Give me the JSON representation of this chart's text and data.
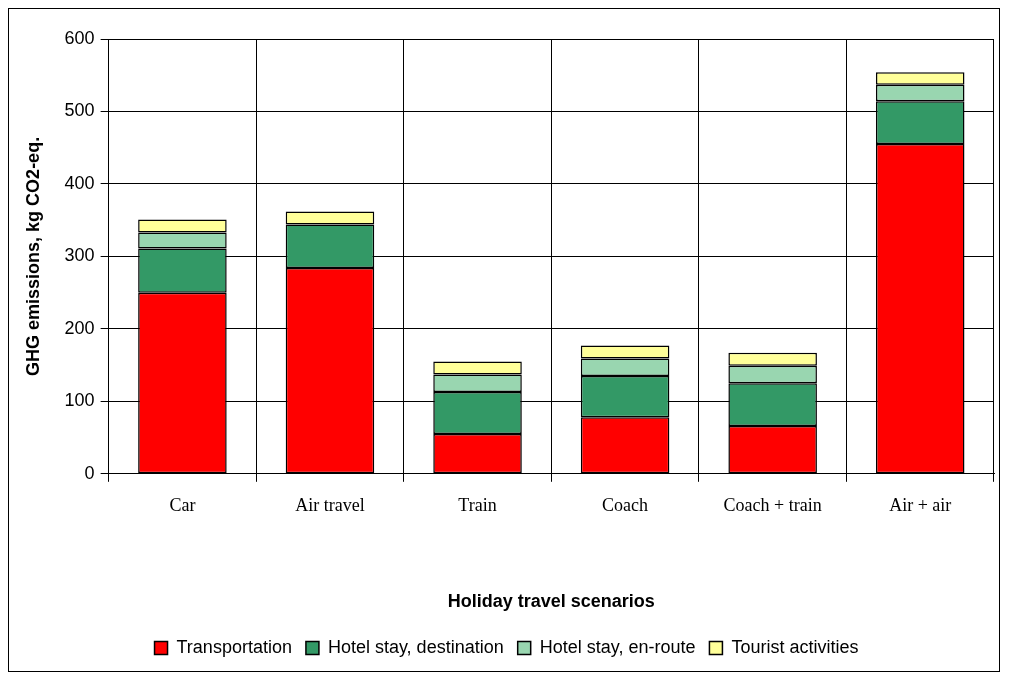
{
  "chart_data": {
    "type": "bar",
    "stacked": true,
    "xlabel": "Holiday travel scenarios",
    "ylabel": "GHG emissions, kg CO2-eq.",
    "categories": [
      "Car",
      "Air travel",
      "Train",
      "Coach",
      "Coach + train",
      "Air + air"
    ],
    "series": [
      {
        "name": "Transportation",
        "color": "#ff0000",
        "values": [
          250,
          284,
          55,
          78,
          66,
          455
        ]
      },
      {
        "name": "Hotel stay, destination",
        "color": "#339966",
        "values": [
          61,
          60,
          58,
          57,
          59,
          59
        ]
      },
      {
        "name": "Hotel stay, en-route",
        "color": "#99d6b0",
        "values": [
          22,
          0,
          24,
          24,
          24,
          23
        ]
      },
      {
        "name": "Tourist activities",
        "color": "#ffff99",
        "values": [
          18,
          18,
          18,
          18,
          18,
          17
        ]
      }
    ],
    "ylim": [
      0,
      600
    ],
    "yticks": [
      0,
      100,
      200,
      300,
      400,
      500,
      600
    ],
    "grid": true,
    "legend": "bottom"
  }
}
